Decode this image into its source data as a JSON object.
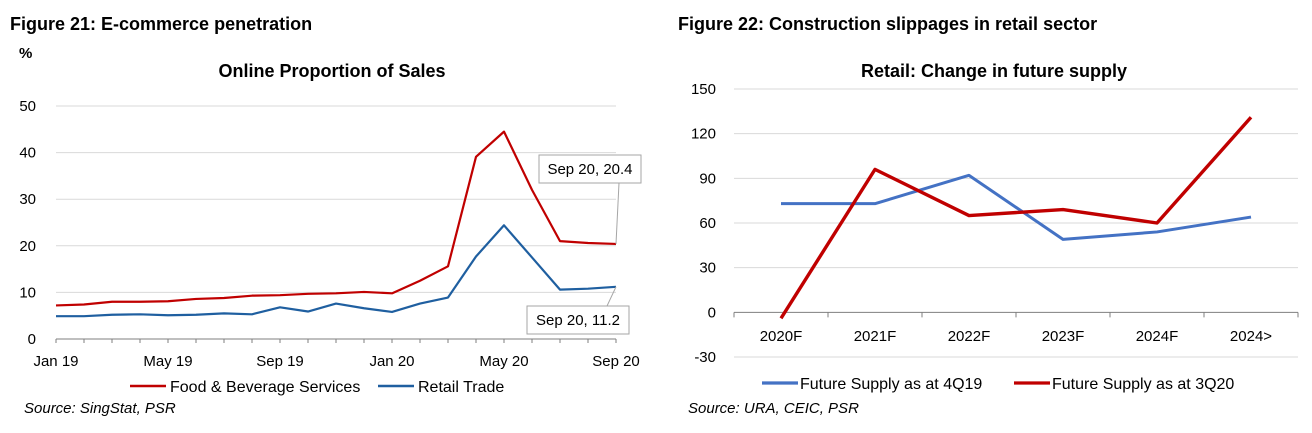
{
  "figures": [
    {
      "caption": "Figure 21: E-commerce penetration",
      "source": "Source: SingStat, PSR",
      "chart_data": {
        "type": "line",
        "title": "Online Proportion of Sales",
        "ylabel": "%",
        "ylim": [
          0,
          50
        ],
        "yticks": [
          "0",
          "10",
          "20",
          "30",
          "40",
          "50"
        ],
        "x": [
          "Jan 19",
          "Feb 19",
          "Mar 19",
          "Apr 19",
          "May 19",
          "Jun 19",
          "Jul 19",
          "Aug 19",
          "Sep 19",
          "Oct 19",
          "Nov 19",
          "Dec 19",
          "Jan 20",
          "Feb 20",
          "Mar 20",
          "Apr 20",
          "May 20",
          "Jun 20",
          "Jul 20",
          "Aug 20",
          "Sep 20"
        ],
        "xtick_labels": [
          {
            "index": 0,
            "label": "Jan 19"
          },
          {
            "index": 4,
            "label": "May 19"
          },
          {
            "index": 8,
            "label": "Sep 19"
          },
          {
            "index": 12,
            "label": "Jan 20"
          },
          {
            "index": 16,
            "label": "May 20"
          },
          {
            "index": 20,
            "label": "Sep 20"
          }
        ],
        "series": [
          {
            "name": "Food & Beverage Services",
            "color": "#c00000",
            "values": [
              7.2,
              7.4,
              8.0,
              8.0,
              8.1,
              8.6,
              8.8,
              9.3,
              9.4,
              9.7,
              9.8,
              10.1,
              9.8,
              12.5,
              15.6,
              39.1,
              44.5,
              32.0,
              21.0,
              20.6,
              20.4
            ]
          },
          {
            "name": "Retail Trade",
            "color": "#1f5fa0",
            "values": [
              4.9,
              4.9,
              5.2,
              5.3,
              5.1,
              5.2,
              5.5,
              5.3,
              6.8,
              5.9,
              7.6,
              6.6,
              5.8,
              7.6,
              8.9,
              17.7,
              24.4,
              17.5,
              10.6,
              10.8,
              11.2
            ]
          }
        ],
        "annotations": [
          {
            "series": 0,
            "index": 20,
            "text": "Sep 20, 20.4"
          },
          {
            "series": 1,
            "index": 20,
            "text": "Sep 20, 11.2"
          }
        ],
        "legend": "bottom",
        "grid": "horizontal"
      }
    },
    {
      "caption": "Figure 22: Construction slippages in retail sector",
      "source_parts": [
        "Source: URA, ",
        "CEIC",
        ", PSR"
      ],
      "chart_data": {
        "type": "line",
        "title": "Retail: Change in future supply",
        "ylim": [
          -30,
          150
        ],
        "yticks": [
          "-30",
          "0",
          "30",
          "60",
          "90",
          "120",
          "150"
        ],
        "categories": [
          "2020F",
          "2021F",
          "2022F",
          "2023F",
          "2024F",
          "2024>"
        ],
        "series": [
          {
            "name": "Future Supply as at 4Q19",
            "color": "#4472c4",
            "values": [
              73,
              73,
              92,
              49,
              54,
              64
            ]
          },
          {
            "name": "Future Supply as at 3Q20",
            "color": "#c00000",
            "values": [
              -4,
              96,
              65,
              69,
              60,
              131
            ]
          }
        ],
        "legend": "bottom",
        "grid": "horizontal"
      }
    }
  ]
}
